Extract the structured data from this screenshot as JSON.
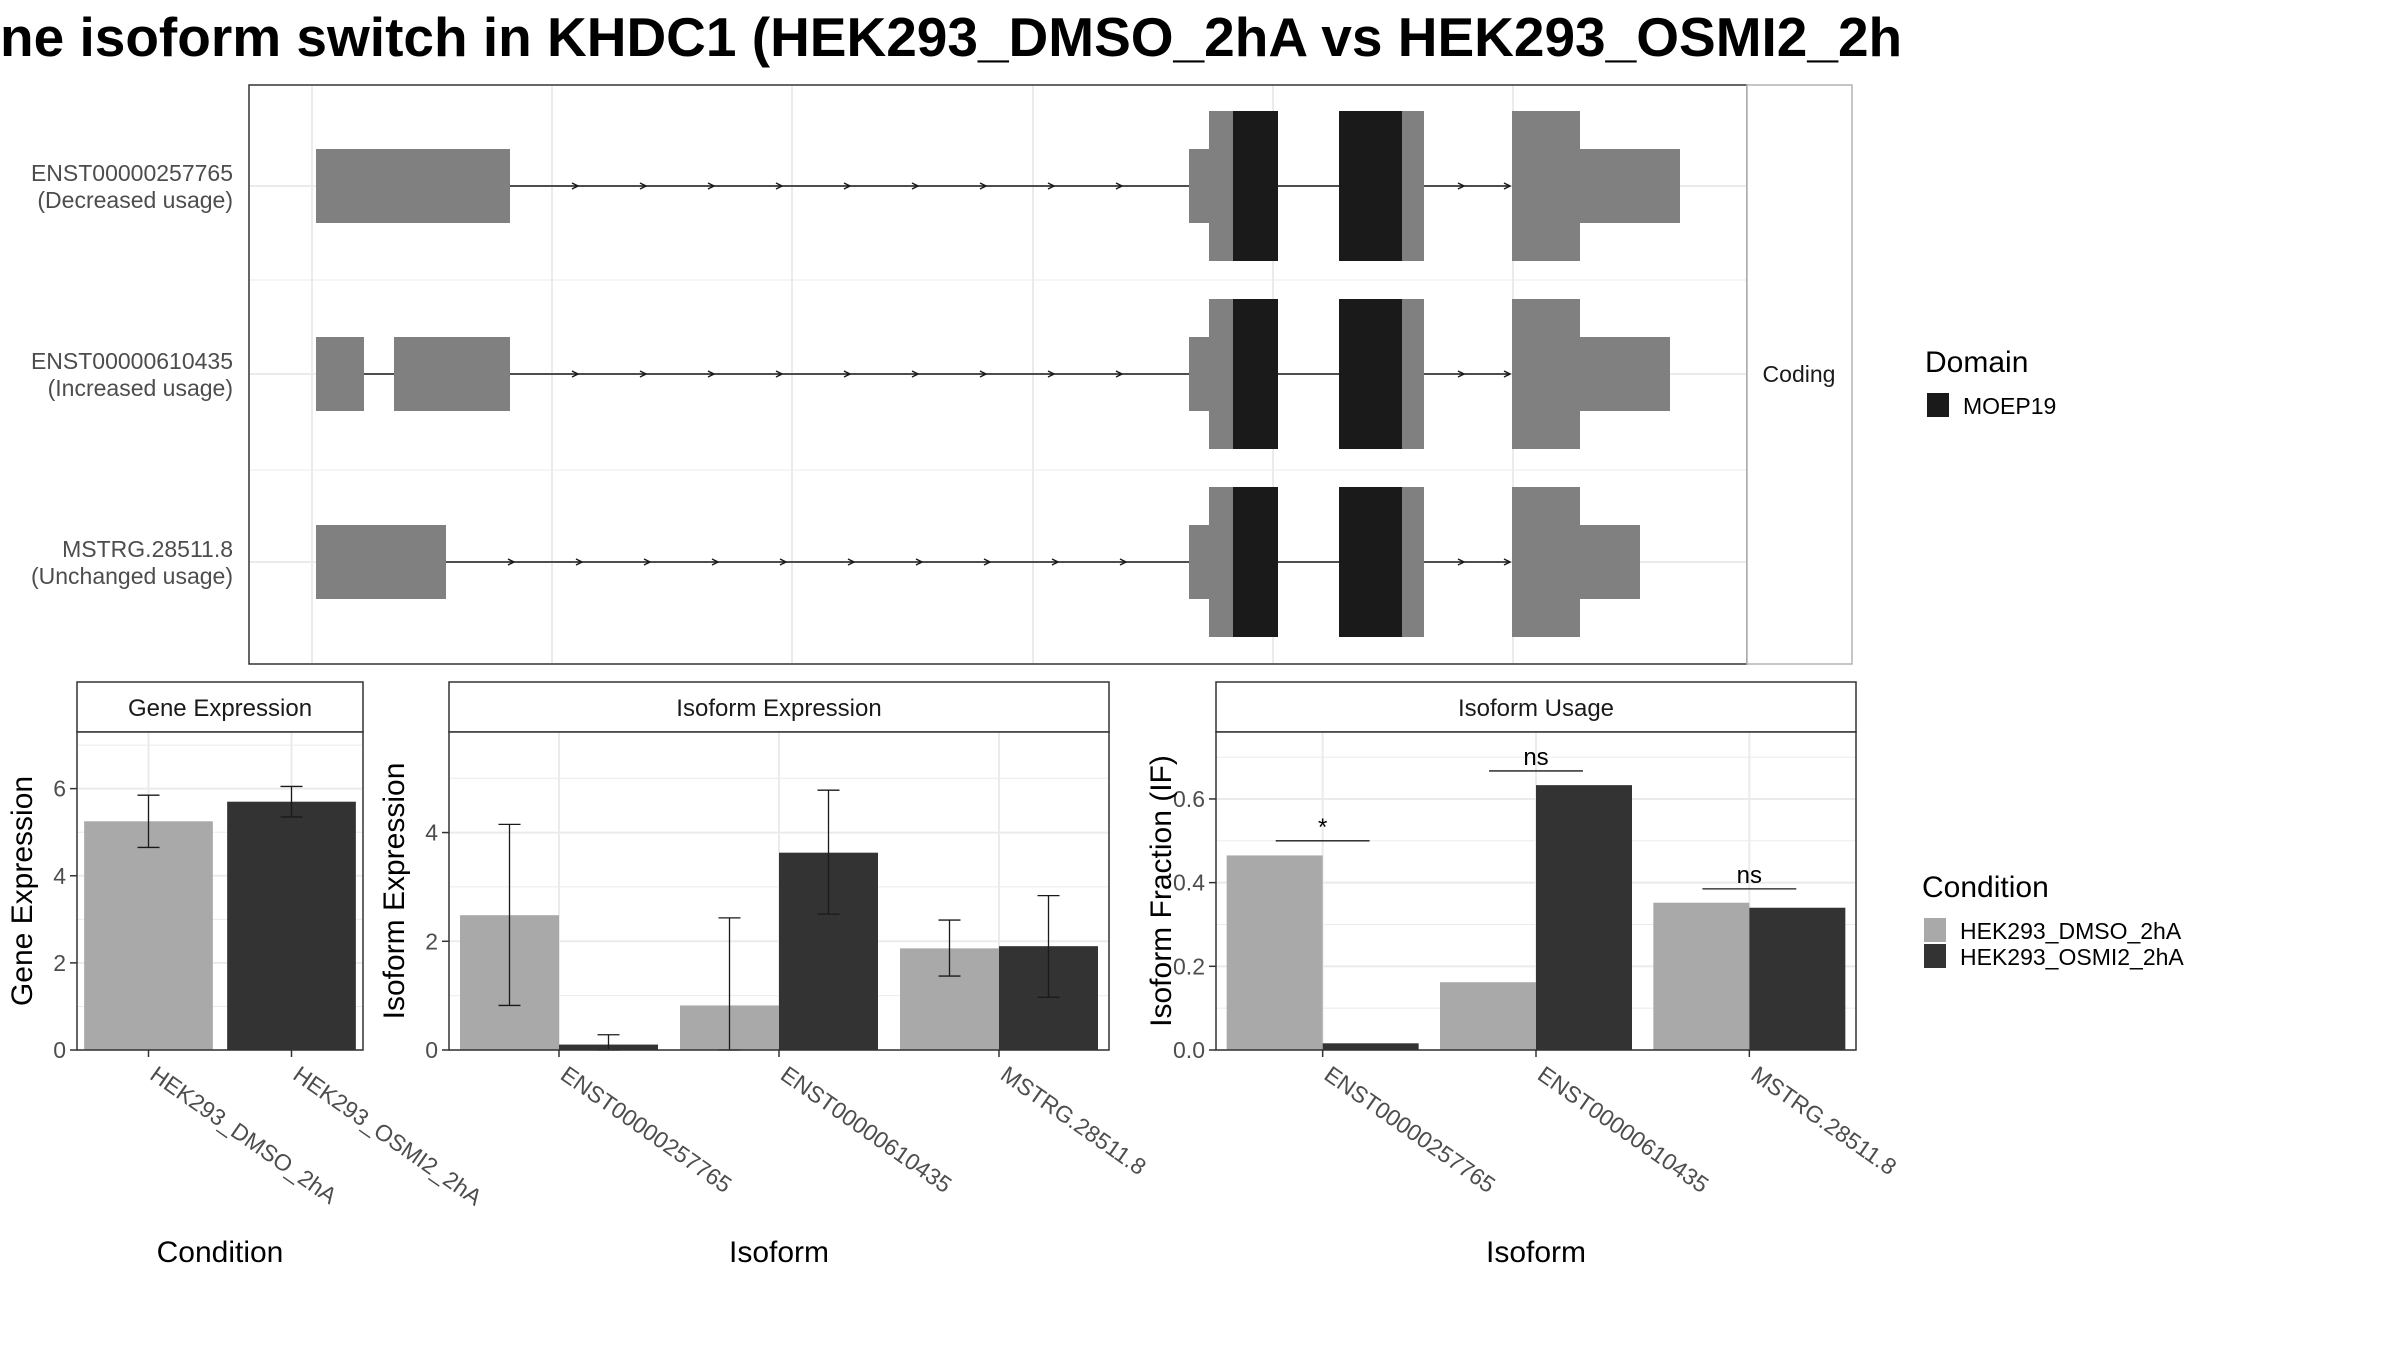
{
  "title": "ne isoform switch in KHDC1 (HEK293_DMSO_2hA vs HEK293_OSMI2_2h",
  "colors": {
    "exon": "#808080",
    "domain": "#1a1a1a",
    "cond1": "#a9a9a9",
    "cond2": "#333333",
    "grid": "#ebebeb",
    "strip": "#ffffff",
    "border": "#333333"
  },
  "structure": {
    "strip_label": "Coding",
    "transcripts": [
      {
        "id": "ENST00000257765",
        "usage": "(Decreased usage)"
      },
      {
        "id": "ENST00000610435",
        "usage": "(Increased usage)"
      },
      {
        "id": "MSTRG.28511.8",
        "usage": "(Unchanged usage)"
      }
    ]
  },
  "legends": {
    "domain_title": "Domain",
    "domain_items": [
      "MOEP19"
    ],
    "condition_title": "Condition",
    "condition_items": [
      "HEK293_DMSO_2hA",
      "HEK293_OSMI2_2hA"
    ]
  },
  "chart_data": [
    {
      "type": "bar",
      "title": "Gene Expression",
      "xlabel": "Condition",
      "ylabel": "Gene Expression",
      "ylim": [
        0,
        7.3
      ],
      "yticks": [
        0,
        2,
        4,
        6
      ],
      "categories": [
        "HEK293_DMSO_2hA",
        "HEK293_OSMI2_2hA"
      ],
      "values": [
        5.25,
        5.7
      ],
      "errors": [
        [
          4.65,
          5.85
        ],
        [
          5.35,
          6.05
        ]
      ],
      "annotations": []
    },
    {
      "type": "bar",
      "title": "Isoform Expression",
      "xlabel": "Isoform",
      "ylabel": "Isoform Expression",
      "ylim": [
        0,
        5.85
      ],
      "yticks": [
        0,
        2,
        4
      ],
      "categories": [
        "ENST00000257765",
        "ENST00000610435",
        "MSTRG.28511.8"
      ],
      "series": [
        {
          "name": "HEK293_DMSO_2hA",
          "values": [
            2.48,
            0.82,
            1.87
          ],
          "errors": [
            [
              0.82,
              4.15
            ],
            [
              0.0,
              2.43
            ],
            [
              1.36,
              2.39
            ]
          ]
        },
        {
          "name": "HEK293_OSMI2_2hA",
          "values": [
            0.1,
            3.63,
            1.91
          ],
          "errors": [
            [
              0.0,
              0.28
            ],
            [
              2.5,
              4.78
            ],
            [
              0.97,
              2.84
            ]
          ]
        }
      ],
      "annotations": []
    },
    {
      "type": "bar",
      "title": "Isoform Usage",
      "xlabel": "Isoform",
      "ylabel": "Isoform Fraction (IF)",
      "ylim": [
        0,
        0.76
      ],
      "yticks": [
        0.0,
        0.2,
        0.4,
        0.6
      ],
      "yfmt": 1,
      "categories": [
        "ENST00000257765",
        "ENST00000610435",
        "MSTRG.28511.8"
      ],
      "series": [
        {
          "name": "HEK293_DMSO_2hA",
          "values": [
            0.465,
            0.162,
            0.352
          ]
        },
        {
          "name": "HEK293_OSMI2_2hA",
          "values": [
            0.016,
            0.633,
            0.34
          ]
        }
      ],
      "annotations": [
        {
          "category": 0,
          "label": "*",
          "y": 0.5
        },
        {
          "category": 1,
          "label": "ns",
          "y": 0.667
        },
        {
          "category": 2,
          "label": "ns",
          "y": 0.385
        }
      ]
    }
  ]
}
